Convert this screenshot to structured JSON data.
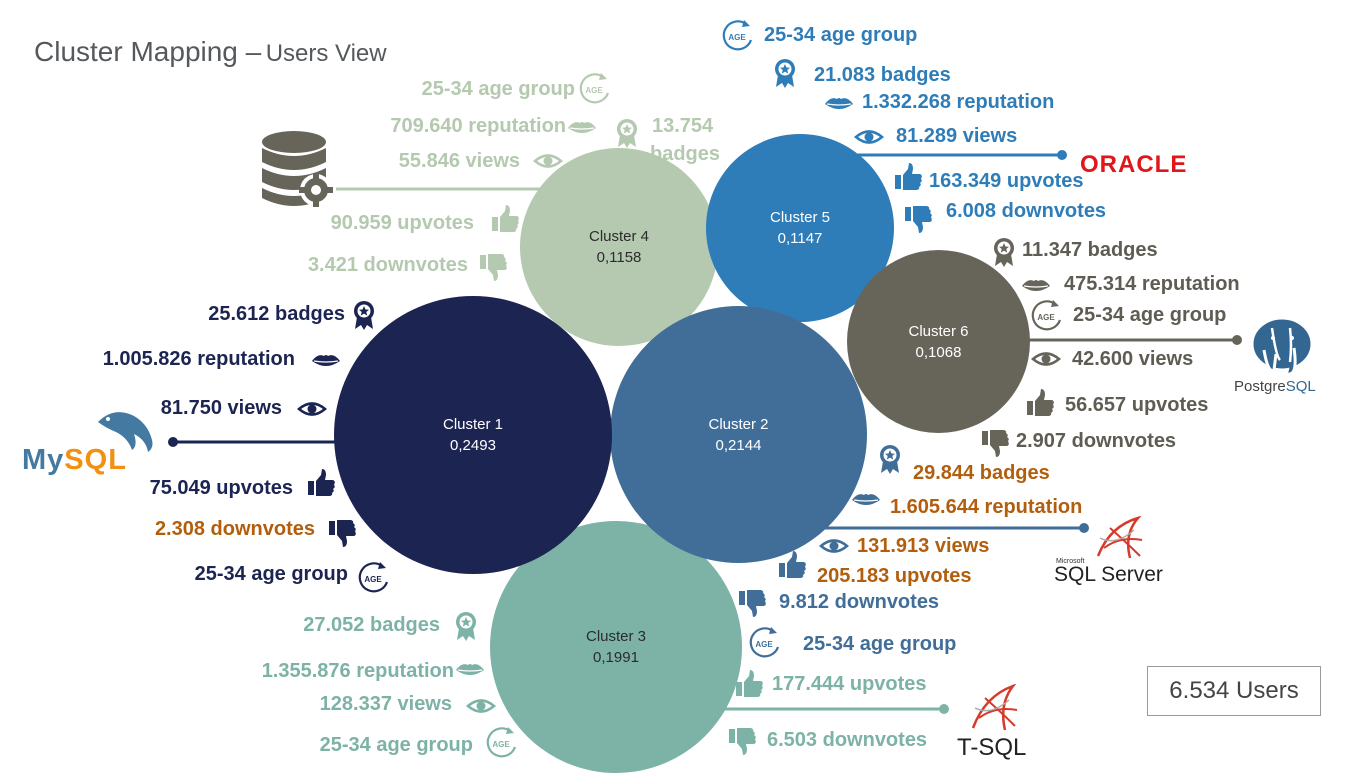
{
  "title": {
    "main": "Cluster Mapping –",
    "sub": "Users View"
  },
  "users_total": "6.534 Users",
  "logos": {
    "oracle": "ORACLE",
    "postgres_a": "Postgre",
    "postgres_b": "SQL",
    "mysql_a": "My",
    "mysql_b": "SQL",
    "sqlserver_small": "Microsoft",
    "sqlserver": "SQL Server",
    "tsql": "T-SQL"
  },
  "clusters": [
    {
      "name": "Cluster 1",
      "value": "0,2493",
      "color": "#1c2452",
      "stats": [
        "25.612 badges",
        "1.005.826 reputation",
        "81.750 views",
        "75.049 upvotes",
        "2.308 downvotes",
        "25-34 age group"
      ]
    },
    {
      "name": "Cluster 2",
      "value": "0,2144",
      "color": "#416e98",
      "stats": [
        "29.844 badges",
        "1.605.644 reputation",
        "131.913 views",
        "205.183 upvotes",
        "9.812 downvotes",
        "25-34 age group"
      ]
    },
    {
      "name": "Cluster 3",
      "value": "0,1991",
      "color": "#7db2a6",
      "stats": [
        "27.052 badges",
        "1.355.876 reputation",
        "128.337 views",
        "177.444 upvotes",
        "6.503 downvotes",
        "25-34 age group"
      ]
    },
    {
      "name": "Cluster 4",
      "value": "0,1158",
      "color": "#b4c9af",
      "stats": [
        "25-34 age group",
        "709.640 reputation",
        "13.754",
        "badges",
        "55.846 views",
        "90.959 upvotes",
        "3.421 downvotes"
      ]
    },
    {
      "name": "Cluster 5",
      "value": "0,1147",
      "color": "#2e7db8",
      "stats": [
        "25-34 age group",
        "21.083 badges",
        "1.332.268 reputation",
        "81.289 views",
        "163.349 upvotes",
        "6.008 downvotes"
      ]
    },
    {
      "name": "Cluster 6",
      "value": "0,1068",
      "color": "#67645a",
      "stats": [
        "11.347 badges",
        "475.314 reputation",
        "25-34 age group",
        "42.600 views",
        "56.657 upvotes",
        "2.907 downvotes"
      ]
    }
  ],
  "text_colors": {
    "cluster1": "#1c2452",
    "cluster2": "#b35e0c",
    "cluster3": "#7db2a6",
    "cluster4": "#b4c9af",
    "cluster5": "#2e7db8",
    "cluster6": "#5f5c53",
    "cluster2_blue": "#416e98"
  },
  "icons": [
    "badge-icon",
    "lips-icon",
    "eye-icon",
    "thumbs-up-icon",
    "thumbs-down-icon",
    "age-icon",
    "database-gear-icon"
  ]
}
